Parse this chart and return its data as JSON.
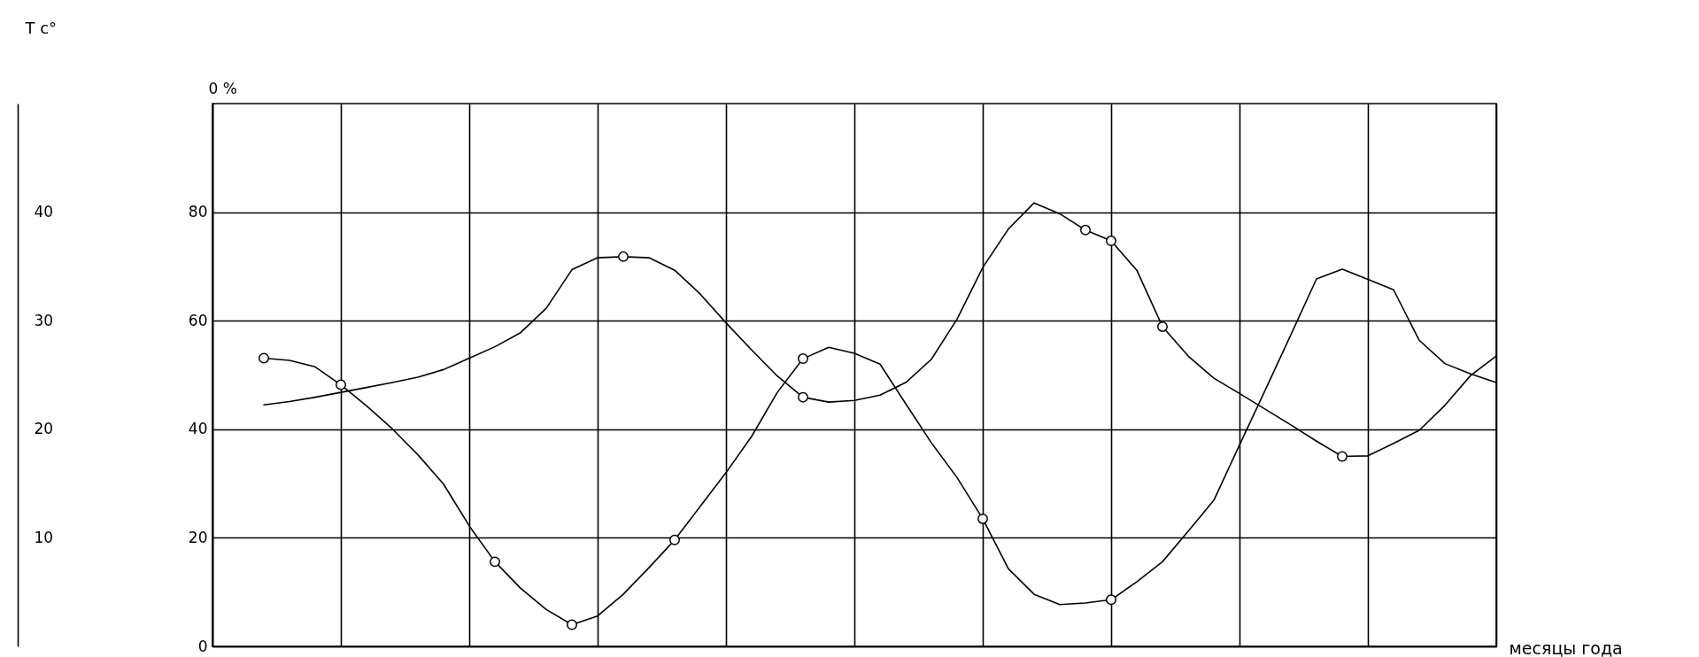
{
  "chart_data": {
    "type": "line",
    "xlabel": "месяцы года",
    "ylabel": "0 %",
    "y2label": "T c°",
    "categories": [
      null,
      null,
      null,
      null,
      null,
      null,
      null,
      null,
      null,
      null,
      null,
      null,
      null,
      null,
      null,
      null,
      null,
      null,
      null,
      null,
      null,
      null,
      null,
      null,
      null,
      null,
      null,
      null,
      null,
      null,
      null,
      null,
      null,
      null,
      null,
      null,
      null,
      null,
      null,
      null,
      null,
      null,
      null,
      null,
      null,
      null,
      null,
      null,
      null,
      null,
      null
    ],
    "ylim": [
      0,
      100
    ],
    "yticks": [
      0,
      20,
      40,
      60,
      80
    ],
    "y2lim": [
      0,
      50
    ],
    "y2ticks": [
      10,
      20,
      30,
      40
    ],
    "grid": true,
    "line_style": "solid",
    "series": [
      {
        "color": "#000000",
        "values": [
          null,
          null,
          53.1,
          52.7,
          51.5,
          48.2,
          44.3,
          40.1,
          35.3,
          29.9,
          22.2,
          15.6,
          10.7,
          6.8,
          4.0,
          5.6,
          9.6,
          14.5,
          19.6,
          25.8,
          32.0,
          38.7,
          46.8,
          53.0,
          55.1,
          54.0,
          52.0,
          44.7,
          37.5,
          31.1,
          23.5,
          14.3,
          9.6,
          7.7,
          8.0,
          8.6,
          11.9,
          15.6,
          21.2,
          26.9,
          37.1,
          47.2,
          57.4,
          67.7,
          69.5,
          67.6,
          65.7,
          56.4,
          52.1,
          50.2,
          48.6
        ]
      },
      {
        "color": "#000000",
        "values": [
          null,
          null,
          44.5,
          45.1,
          45.9,
          46.8,
          47.7,
          48.6,
          49.6,
          51.0,
          53.1,
          55.2,
          57.8,
          62.3,
          69.4,
          71.6,
          71.8,
          71.6,
          69.3,
          64.9,
          59.6,
          54.6,
          49.8,
          45.9,
          45.0,
          45.3,
          46.3,
          48.6,
          52.9,
          60.3,
          69.8,
          76.9,
          81.7,
          79.7,
          76.7,
          74.7,
          69.3,
          58.9,
          53.5,
          49.4,
          46.6,
          43.7,
          40.8,
          37.8,
          35.0,
          35.1,
          37.4,
          39.8,
          44.4,
          49.9,
          53.5
        ]
      },
      {
        "type": "scatter",
        "color": "#000000",
        "marker": "circle",
        "values": [
          null,
          null,
          53.1,
          null,
          null,
          48.2,
          null,
          null,
          null,
          null,
          null,
          15.6,
          null,
          null,
          4.0,
          null,
          null,
          null,
          19.6,
          null,
          null,
          null,
          null,
          53.0,
          null,
          null,
          null,
          null,
          null,
          null,
          23.5,
          null,
          null,
          null,
          null,
          8.6,
          null,
          null,
          null,
          null,
          null,
          null,
          null,
          null,
          null,
          null,
          null,
          null,
          null,
          null,
          null
        ]
      },
      {
        "type": "scatter",
        "color": "#000000",
        "marker": "circle",
        "values": [
          null,
          null,
          null,
          null,
          null,
          null,
          null,
          null,
          null,
          null,
          null,
          null,
          null,
          null,
          null,
          null,
          71.8,
          null,
          null,
          null,
          null,
          null,
          null,
          45.9,
          null,
          null,
          null,
          null,
          null,
          null,
          null,
          null,
          null,
          null,
          76.7,
          74.7,
          null,
          58.9,
          null,
          null,
          null,
          null,
          null,
          null,
          35.0,
          null,
          null,
          null,
          null,
          null,
          null
        ]
      }
    ]
  }
}
